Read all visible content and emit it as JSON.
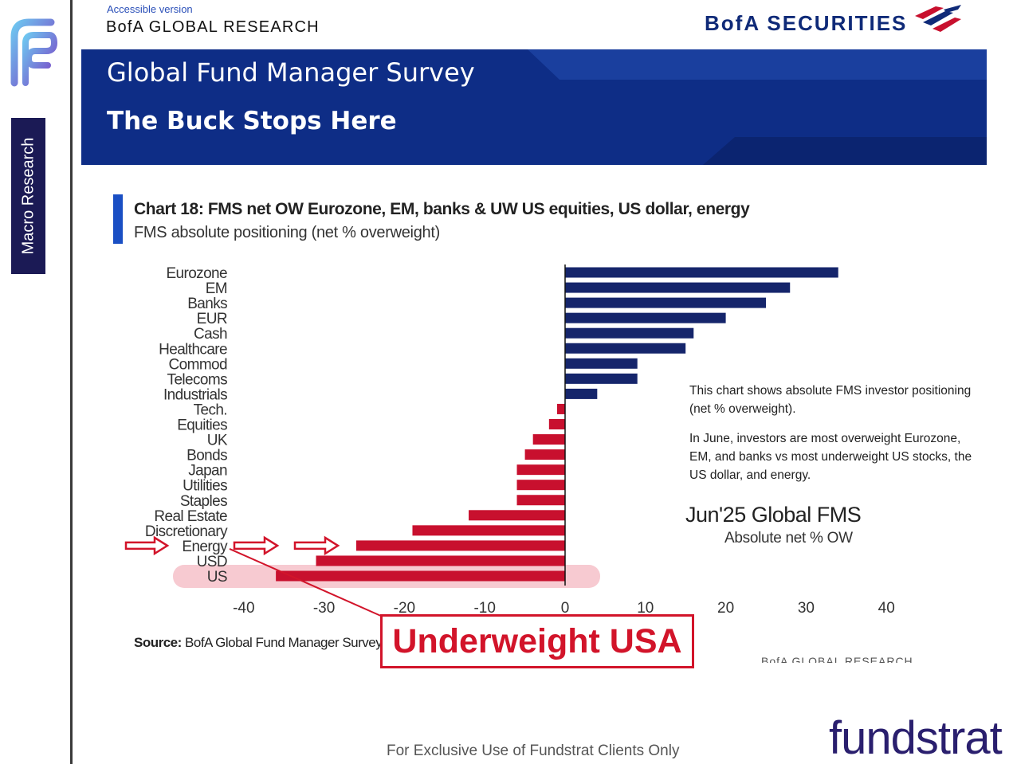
{
  "sidebar": {
    "logo_icon": "fundstrat-fs-logo-icon",
    "tab_label": "Macro Research"
  },
  "header": {
    "accessible_link": "Accessible version",
    "brand_left": "BofA GLOBAL RESEARCH",
    "brand_right": "BofA SECURITIES",
    "flag_icon": "bofa-flag-icon"
  },
  "banner": {
    "subtitle": "Global Fund Manager Survey",
    "title": "The Buck Stops Here"
  },
  "chart_heading": {
    "title": "Chart 18: FMS net OW Eurozone, EM, banks & UW US equities, US dollar, energy",
    "subtitle": "FMS absolute positioning (net % overweight)"
  },
  "chart_data": {
    "type": "bar",
    "orientation": "horizontal",
    "categories": [
      "Eurozone",
      "EM",
      "Banks",
      "EUR",
      "Cash",
      "Healthcare",
      "Commod",
      "Telecoms",
      "Industrials",
      "Tech.",
      "Equities",
      "UK",
      "Bonds",
      "Japan",
      "Utilities",
      "Staples",
      "Real Estate",
      "Discretionary",
      "Energy",
      "USD",
      "US"
    ],
    "values": [
      34,
      28,
      25,
      20,
      16,
      15,
      9,
      9,
      4,
      -1,
      -2,
      -4,
      -5,
      -6,
      -6,
      -6,
      -12,
      -19,
      -26,
      -31,
      -36
    ],
    "positive_color": "#15256b",
    "negative_color": "#c8102e",
    "xlim": [
      -40,
      40
    ],
    "xticks": [
      -40,
      -30,
      -20,
      -10,
      0,
      10,
      20,
      30,
      40
    ],
    "tick_labels": [
      "-40",
      "-30",
      "-20",
      "-10",
      "0",
      "10",
      "20",
      "30",
      "40"
    ],
    "highlight_category": "US",
    "highlight_color": "#f4b8c1",
    "arrow_color": "#d2142a",
    "grid": false
  },
  "annotation": {
    "line1": "This chart shows absolute FMS investor positioning (net % overweight).",
    "line2": "In June, investors are most overweight Eurozone, EM, and banks vs most underweight US stocks, the US dollar, and energy.",
    "fms_label": "Jun'25 Global FMS",
    "fms_sub": "Absolute net % OW"
  },
  "source": {
    "label": "Source:",
    "text": "BofA Global Fund Manager Survey",
    "faded_brand": "BofA GLOBAL RESEARCH"
  },
  "callout": {
    "text": "Underweight USA",
    "color": "#d2142a"
  },
  "footer": {
    "disclaimer": "For Exclusive Use of Fundstrat Clients Only",
    "brand": "fundstrat"
  }
}
